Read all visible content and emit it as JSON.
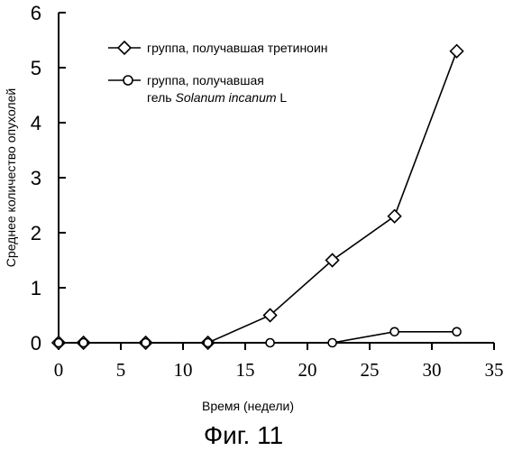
{
  "chart_data": {
    "type": "line",
    "xlabel": "Время (недели)",
    "ylabel": "Среднее количество опухолей",
    "xlim": [
      0,
      35
    ],
    "ylim": [
      0,
      6
    ],
    "x_ticks": [
      "0",
      "5",
      "10",
      "15",
      "20",
      "25",
      "30",
      "35"
    ],
    "y_ticks": [
      "0",
      "1",
      "2",
      "3",
      "4",
      "5",
      "6"
    ],
    "grid": false,
    "legend_position": "top-right",
    "series": [
      {
        "name": "группа, получавшая третиноин",
        "marker": "diamond",
        "points": [
          [
            0,
            0
          ],
          [
            2,
            0
          ],
          [
            7,
            0
          ],
          [
            12,
            0
          ],
          [
            17,
            0.5
          ],
          [
            22,
            1.5
          ],
          [
            27,
            2.3
          ],
          [
            32,
            5.3
          ]
        ]
      },
      {
        "name_line1": "группа, получавшая",
        "name_line2_prefix": "гель ",
        "name_line2_italic": "Solanum incanum",
        "name_line2_suffix": " L",
        "marker": "circle",
        "points": [
          [
            0,
            0
          ],
          [
            2,
            0
          ],
          [
            7,
            0
          ],
          [
            12,
            0
          ],
          [
            17,
            0
          ],
          [
            22,
            0
          ],
          [
            27,
            0.2
          ],
          [
            32,
            0.2
          ]
        ]
      }
    ]
  },
  "caption": "Фиг. 11"
}
